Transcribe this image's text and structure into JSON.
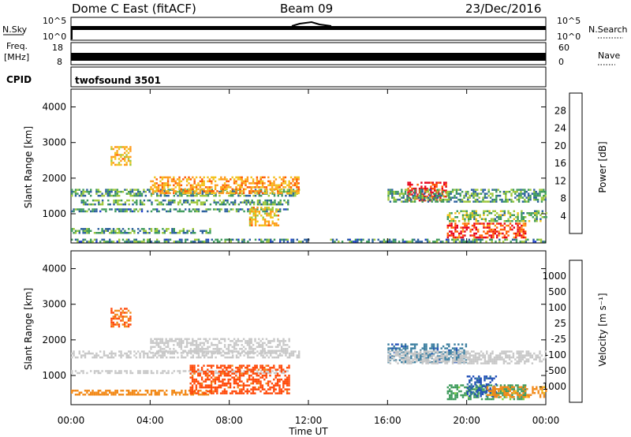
{
  "header": {
    "title": "Dome C East (fitACF)",
    "beam": "Beam 09",
    "date": "23/Dec/2016"
  },
  "top_panels": {
    "nsky_label": "N.Sky",
    "nsky_ticks": [
      "10^5",
      "10^0"
    ],
    "nsearch_label": "N.Search",
    "nsearch_ticks": [
      "10^5",
      "10^0"
    ],
    "freq_label": "Freq.",
    "freq_unit": "[MHz]",
    "freq_ticks": [
      "18",
      "8"
    ],
    "nave_label": "Nave",
    "nave_ticks": [
      "60",
      "0"
    ],
    "cpid_label": "CPID",
    "cpid_value": "twofsound 3501"
  },
  "x_axis": {
    "label": "Time UT",
    "ticks": [
      "00:00",
      "04:00",
      "08:00",
      "12:00",
      "16:00",
      "20:00",
      "00:00"
    ]
  },
  "y_axis": {
    "label": "Slant Range [km]",
    "ticks": [
      "1000",
      "2000",
      "3000",
      "4000"
    ]
  },
  "power_colorbar": {
    "label": "Power [dB]",
    "ticks": [
      "28",
      "24",
      "20",
      "16",
      "12",
      "8",
      "4"
    ],
    "colors": [
      "#e8001a",
      "#ff5a00",
      "#ff9a1a",
      "#f2c21c",
      "#9ec83a",
      "#3d9a5b",
      "#2b5f9e",
      "#1f3fcc"
    ]
  },
  "velocity_colorbar": {
    "label": "Velocity [m s⁻¹]",
    "ticks": [
      "1000",
      "500",
      "100",
      "25",
      "-25",
      "-100",
      "-500",
      "-1000"
    ],
    "colors": [
      "#2452b8",
      "#3c7fa0",
      "#3d9a5b",
      "#7bd13a",
      "#c8c8c8",
      "#f2c21c",
      "#f28a1a",
      "#ff4a0a",
      "#e8001a"
    ]
  },
  "chart_data": [
    {
      "type": "heatmap",
      "panel": "power",
      "xlabel": "Time UT",
      "ylabel": "Slant Range [km]",
      "x_ticks_hours": [
        0,
        4,
        8,
        12,
        16,
        20,
        24
      ],
      "ylim": [
        180,
        4500
      ],
      "colorbar_label": "Power [dB]",
      "colorbar_range": [
        0,
        30
      ],
      "echo_bands": [
        {
          "t_start": 0.0,
          "t_end": 11.5,
          "range_km": [
            1500,
            1700
          ],
          "value": 10
        },
        {
          "t_start": 0.5,
          "t_end": 11.0,
          "range_km": [
            1250,
            1400
          ],
          "value": 10
        },
        {
          "t_start": 0.0,
          "t_end": 11.0,
          "range_km": [
            1050,
            1150
          ],
          "value": 8
        },
        {
          "t_start": 0.0,
          "t_end": 7.0,
          "range_km": [
            450,
            600
          ],
          "value": 10
        },
        {
          "t_start": 0.0,
          "t_end": 12.0,
          "range_km": [
            200,
            300
          ],
          "value": 8
        },
        {
          "t_start": 4.0,
          "t_end": 11.5,
          "range_km": [
            1600,
            2050
          ],
          "value": 20
        },
        {
          "t_start": 2.0,
          "t_end": 3.0,
          "range_km": [
            2400,
            2900
          ],
          "value": 18
        },
        {
          "t_start": 9.0,
          "t_end": 10.5,
          "range_km": [
            700,
            1200
          ],
          "value": 18
        },
        {
          "t_start": 17.0,
          "t_end": 19.0,
          "range_km": [
            1400,
            1900
          ],
          "value": 28
        },
        {
          "t_start": 16.0,
          "t_end": 24.0,
          "range_km": [
            1350,
            1700
          ],
          "value": 10
        },
        {
          "t_start": 19.0,
          "t_end": 23.0,
          "range_km": [
            350,
            750
          ],
          "value": 26
        },
        {
          "t_start": 19.0,
          "t_end": 24.0,
          "range_km": [
            800,
            1100
          ],
          "value": 12
        },
        {
          "t_start": 13.0,
          "t_end": 24.0,
          "range_km": [
            200,
            300
          ],
          "value": 8
        }
      ]
    },
    {
      "type": "heatmap",
      "panel": "velocity",
      "xlabel": "Time UT",
      "ylabel": "Slant Range [km]",
      "x_ticks_hours": [
        0,
        4,
        8,
        12,
        16,
        20,
        24
      ],
      "ylim": [
        180,
        4500
      ],
      "colorbar_label": "Velocity [m s⁻¹]",
      "colorbar_ticks": [
        1000,
        500,
        100,
        25,
        -25,
        -100,
        -500,
        -1000
      ],
      "echo_bands": [
        {
          "t_start": 0.0,
          "t_end": 11.5,
          "range_km": [
            1500,
            1700
          ],
          "value": 0
        },
        {
          "t_start": 4.0,
          "t_end": 11.0,
          "range_km": [
            1650,
            2050
          ],
          "value": 0
        },
        {
          "t_start": 0.0,
          "t_end": 11.0,
          "range_km": [
            1050,
            1150
          ],
          "value": 0
        },
        {
          "t_start": 0.0,
          "t_end": 7.0,
          "range_km": [
            450,
            600
          ],
          "value": -150
        },
        {
          "t_start": 6.0,
          "t_end": 11.0,
          "range_km": [
            500,
            1300
          ],
          "value": -400
        },
        {
          "t_start": 2.0,
          "t_end": 3.0,
          "range_km": [
            2400,
            2900
          ],
          "value": -300
        },
        {
          "t_start": 16.0,
          "t_end": 20.0,
          "range_km": [
            1400,
            1900
          ],
          "value": 600
        },
        {
          "t_start": 19.0,
          "t_end": 23.0,
          "range_km": [
            350,
            750
          ],
          "value": 80
        },
        {
          "t_start": 20.0,
          "t_end": 21.5,
          "range_km": [
            400,
            1000
          ],
          "value": 900
        },
        {
          "t_start": 21.0,
          "t_end": 24.0,
          "range_km": [
            400,
            700
          ],
          "value": -80
        },
        {
          "t_start": 16.0,
          "t_end": 24.0,
          "range_km": [
            1350,
            1700
          ],
          "value": 0
        }
      ]
    }
  ]
}
